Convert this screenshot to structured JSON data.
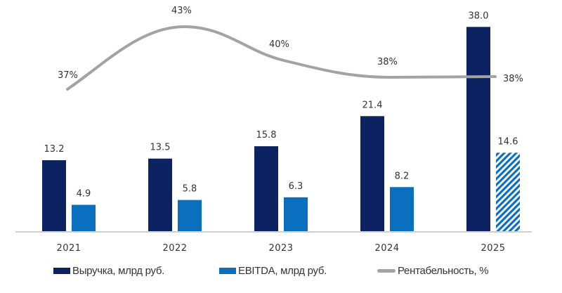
{
  "chart_data": {
    "type": "bar",
    "title": "",
    "xlabel": "",
    "ylabel": "",
    "categories": [
      "2021",
      "2022",
      "2023",
      "2024",
      "2025"
    ],
    "series": [
      {
        "name": "Выручка, млрд руб.",
        "type": "bar",
        "color": "#0d2260",
        "values": [
          13.2,
          13.5,
          15.8,
          21.4,
          38.0
        ],
        "labels": [
          "13.2",
          "13.5",
          "15.8",
          "21.4",
          "38.0"
        ]
      },
      {
        "name": "EBITDA, млрд руб.",
        "type": "bar",
        "color": "#0b6fbf",
        "values": [
          4.9,
          5.8,
          6.3,
          8.2,
          14.6
        ],
        "labels": [
          "4.9",
          "5.8",
          "6.3",
          "8.2",
          "14.6"
        ],
        "hatched": [
          false,
          false,
          false,
          false,
          true
        ]
      },
      {
        "name": "Рентабельность, %",
        "type": "line",
        "color": "#a3a3a3",
        "values": [
          37,
          43,
          40,
          38,
          38
        ],
        "labels": [
          "37%",
          "43%",
          "40%",
          "38%",
          "38%"
        ]
      }
    ],
    "ylim": [
      0,
      40
    ],
    "grid": false,
    "legend": "bottom"
  }
}
